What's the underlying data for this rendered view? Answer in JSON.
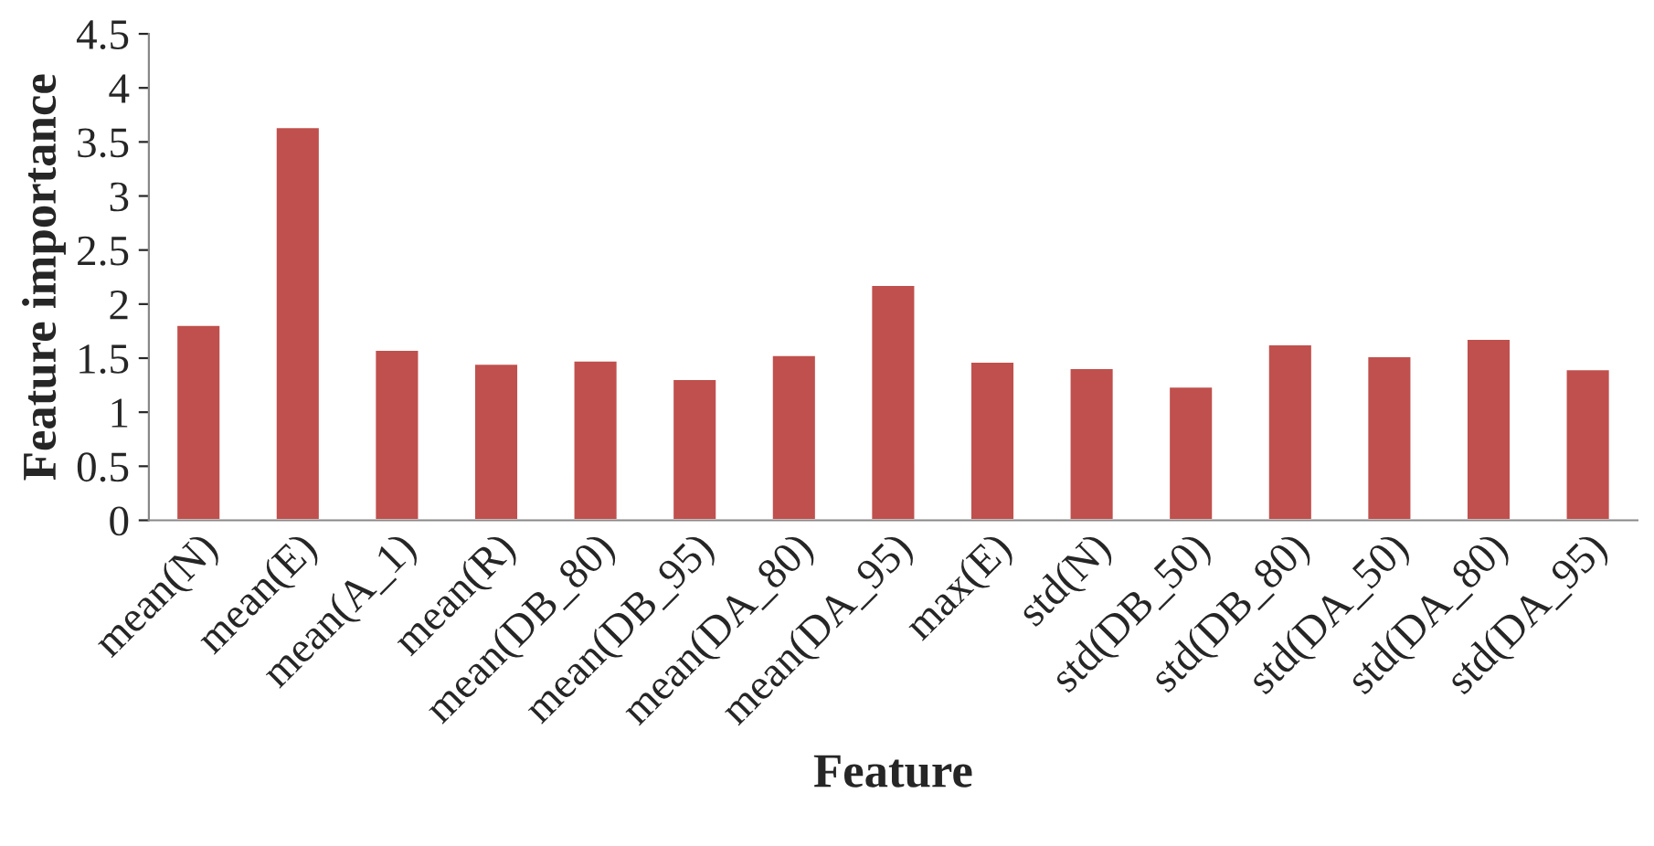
{
  "chart_data": {
    "type": "bar",
    "xlabel": "Feature",
    "ylabel": "Feature importance",
    "categories": [
      "mean(N)",
      "mean(E)",
      "mean(A_1)",
      "mean(R)",
      "mean(DB_80)",
      "mean(DB_95)",
      "mean(DA_80)",
      "mean(DA_95)",
      "max(E)",
      "std(N)",
      "std(DB_50)",
      "std(DB_80)",
      "std(DA_50)",
      "std(DA_80)",
      "std(DA_95)"
    ],
    "values": [
      1.81,
      3.64,
      1.58,
      1.45,
      1.48,
      1.31,
      1.53,
      2.18,
      1.47,
      1.41,
      1.24,
      1.63,
      1.52,
      1.68,
      1.4
    ],
    "color": "#c0504d",
    "ylim": [
      0,
      4.5
    ],
    "yticks": [
      0,
      0.5,
      1,
      1.5,
      2,
      2.5,
      3,
      3.5,
      4,
      4.5
    ],
    "grid": false,
    "legend": false
  }
}
